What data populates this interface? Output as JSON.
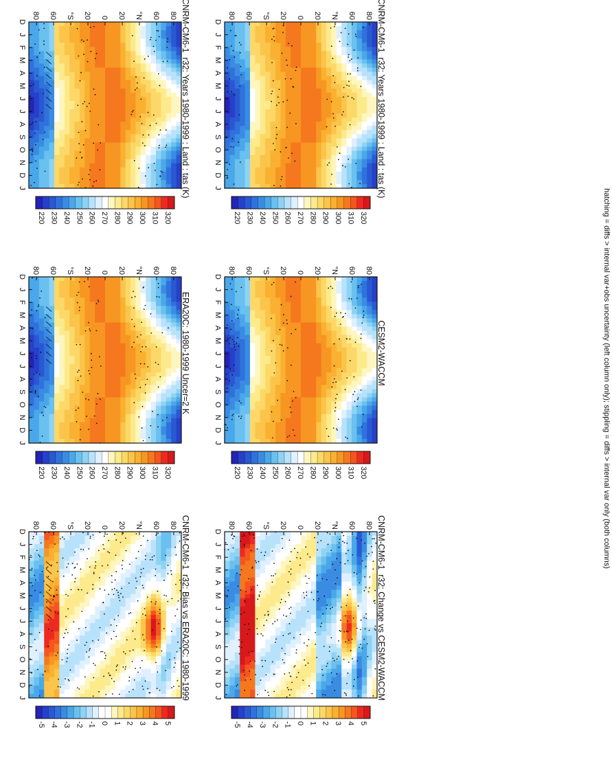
{
  "footer_note": "hatching = diffs > internal var+obs uncertainty (left column only); stippling = diffs > internal var only (both columns)",
  "abs_colorbar": {
    "labels": [
      "320",
      "310",
      "300",
      "290",
      "280",
      "270",
      "260",
      "250",
      "240",
      "230",
      "220"
    ],
    "colors": [
      "#d7191c",
      "#ee2a20",
      "#f4561f",
      "#f5781f",
      "#f79622",
      "#fab030",
      "#fbc44a",
      "#fcd868",
      "#fdea8c",
      "#fef6c0",
      "#ffffff",
      "#dff0ff",
      "#b8e2fb",
      "#8fd3f4",
      "#6ac0ef",
      "#4aa8ea",
      "#3a8ce3",
      "#2f72dc",
      "#2a58d3",
      "#2640c9",
      "#2424b8"
    ]
  },
  "diff_colorbar": {
    "labels": [
      "5",
      "4",
      "3",
      "2",
      "1",
      "0",
      "-1",
      "-2",
      "-3",
      "-4",
      "-5"
    ],
    "colors": [
      "#d7191c",
      "#ee2a20",
      "#f4561f",
      "#f5781f",
      "#f79622",
      "#fab030",
      "#fbc44a",
      "#fcd868",
      "#fdea8c",
      "#fef6c0",
      "#ffffff",
      "#ffffff",
      "#dff0ff",
      "#b8e2fb",
      "#8fd3f4",
      "#6ac0ef",
      "#4aa8ea",
      "#3a8ce3",
      "#2f72dc",
      "#2a58d3",
      "#2640c9",
      "#2424b8"
    ]
  },
  "chart_data": [
    {
      "type": "heatmap",
      "title": "CNRM-CM6-1_r32: Years 1980-1999 : Land : tas (K)",
      "variant": "abs",
      "months": [
        "D",
        "J",
        "F",
        "M",
        "A",
        "M",
        "J",
        "J",
        "A",
        "S",
        "O",
        "N",
        "D",
        "J"
      ],
      "lat_labels": [
        "80",
        "60",
        "°N",
        "20",
        "0",
        "20",
        "°S",
        "60",
        "80"
      ],
      "colorbar": "abs",
      "clevels": [
        220,
        320
      ]
    },
    {
      "type": "heatmap",
      "title": "ERA20C: 1980-1999 Uncer=2 K",
      "variant": "abs",
      "months": [
        "D",
        "J",
        "F",
        "M",
        "A",
        "M",
        "J",
        "J",
        "A",
        "S",
        "O",
        "N",
        "D",
        "J"
      ],
      "lat_labels": [
        "80",
        "60",
        "°N",
        "20",
        "0",
        "20",
        "°S",
        "60",
        "80"
      ],
      "colorbar": "abs",
      "clevels": [
        220,
        320
      ]
    },
    {
      "type": "heatmap",
      "title": "CNRM-CM6-1_r32: Bias vs ERA20C: 1980-1999",
      "variant": "bias",
      "months": [
        "D",
        "J",
        "F",
        "M",
        "A",
        "M",
        "J",
        "J",
        "A",
        "S",
        "O",
        "N",
        "D",
        "J"
      ],
      "lat_labels": [
        "80",
        "60",
        "°N",
        "20",
        "0",
        "20",
        "°S",
        "60",
        "80"
      ],
      "colorbar": "diff",
      "clevels": [
        -5,
        5
      ]
    },
    {
      "type": "heatmap",
      "title": "CNRM-CM6-1_r32: Years 1980-1999 : Land : tas (K)",
      "variant": "abs",
      "months": [
        "D",
        "J",
        "F",
        "M",
        "A",
        "M",
        "J",
        "J",
        "A",
        "S",
        "O",
        "N",
        "D",
        "J"
      ],
      "lat_labels": [
        "80",
        "60",
        "°N",
        "20",
        "0",
        "20",
        "°S",
        "60",
        "80"
      ],
      "colorbar": "abs",
      "clevels": [
        220,
        320
      ]
    },
    {
      "type": "heatmap",
      "title": "CESM2-WACCM",
      "variant": "abs",
      "months": [
        "D",
        "J",
        "F",
        "M",
        "A",
        "M",
        "J",
        "J",
        "A",
        "S",
        "O",
        "N",
        "D",
        "J"
      ],
      "lat_labels": [
        "80",
        "60",
        "°N",
        "20",
        "0",
        "20",
        "°S",
        "60",
        "80"
      ],
      "colorbar": "abs",
      "clevels": [
        220,
        320
      ]
    },
    {
      "type": "heatmap",
      "title": "CNRM-CM6-1_r32: Change vs CESM2-WACCM",
      "variant": "change",
      "months": [
        "D",
        "J",
        "F",
        "M",
        "A",
        "M",
        "J",
        "J",
        "A",
        "S",
        "O",
        "N",
        "D",
        "J"
      ],
      "lat_labels": [
        "80",
        "60",
        "°N",
        "20",
        "0",
        "20",
        "°S",
        "60",
        "80"
      ],
      "colorbar": "diff",
      "clevels": [
        -5,
        5
      ]
    }
  ]
}
